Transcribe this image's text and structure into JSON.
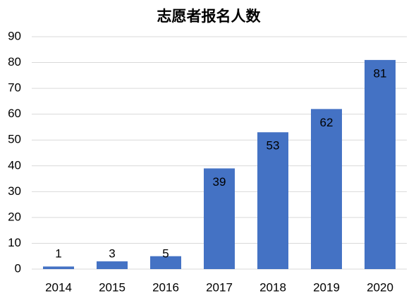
{
  "chart_data": {
    "type": "bar",
    "title": "志愿者报名人数",
    "categories": [
      "2014",
      "2015",
      "2016",
      "2017",
      "2018",
      "2019",
      "2020"
    ],
    "values": [
      1,
      3,
      5,
      39,
      53,
      62,
      81
    ],
    "color": "#4472c4",
    "ylim": [
      0,
      90
    ],
    "yticks": [
      0,
      10,
      20,
      30,
      40,
      50,
      60,
      70,
      80,
      90
    ],
    "grid": true
  }
}
